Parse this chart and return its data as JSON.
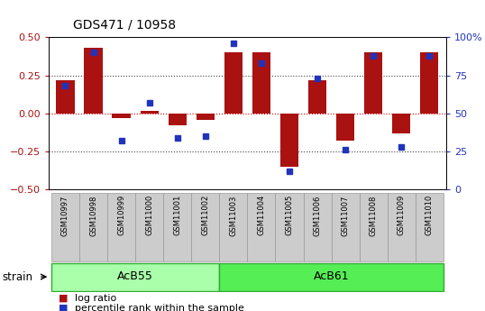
{
  "title": "GDS471 / 10958",
  "samples": [
    "GSM10997",
    "GSM10998",
    "GSM10999",
    "GSM11000",
    "GSM11001",
    "GSM11002",
    "GSM11003",
    "GSM11004",
    "GSM11005",
    "GSM11006",
    "GSM11007",
    "GSM11008",
    "GSM11009",
    "GSM11010"
  ],
  "log_ratio": [
    0.22,
    0.43,
    -0.03,
    0.02,
    -0.08,
    -0.04,
    0.4,
    0.4,
    -0.35,
    0.22,
    -0.18,
    0.4,
    -0.13,
    0.4
  ],
  "percentile": [
    68,
    90,
    32,
    57,
    34,
    35,
    96,
    83,
    12,
    73,
    26,
    88,
    28,
    88
  ],
  "strains": [
    {
      "name": "AcB55",
      "start": 0,
      "end": 5
    },
    {
      "name": "AcB61",
      "start": 6,
      "end": 13
    }
  ],
  "bar_color": "#aa1111",
  "dot_color": "#2233bb",
  "ylim_left": [
    -0.5,
    0.5
  ],
  "ylim_right": [
    0,
    100
  ],
  "yticks_left": [
    -0.5,
    -0.25,
    0,
    0.25,
    0.5
  ],
  "yticks_right": [
    0,
    25,
    50,
    75,
    100
  ],
  "hline_color": "#cc0000",
  "dotted_color": "#444444",
  "strain_colors": [
    "#aaffaa",
    "#55ee55"
  ],
  "label_bg": "#cccccc",
  "background_color": "#ffffff",
  "strain_label": "strain",
  "legend_log_ratio": "log ratio",
  "legend_percentile": "percentile rank within the sample"
}
